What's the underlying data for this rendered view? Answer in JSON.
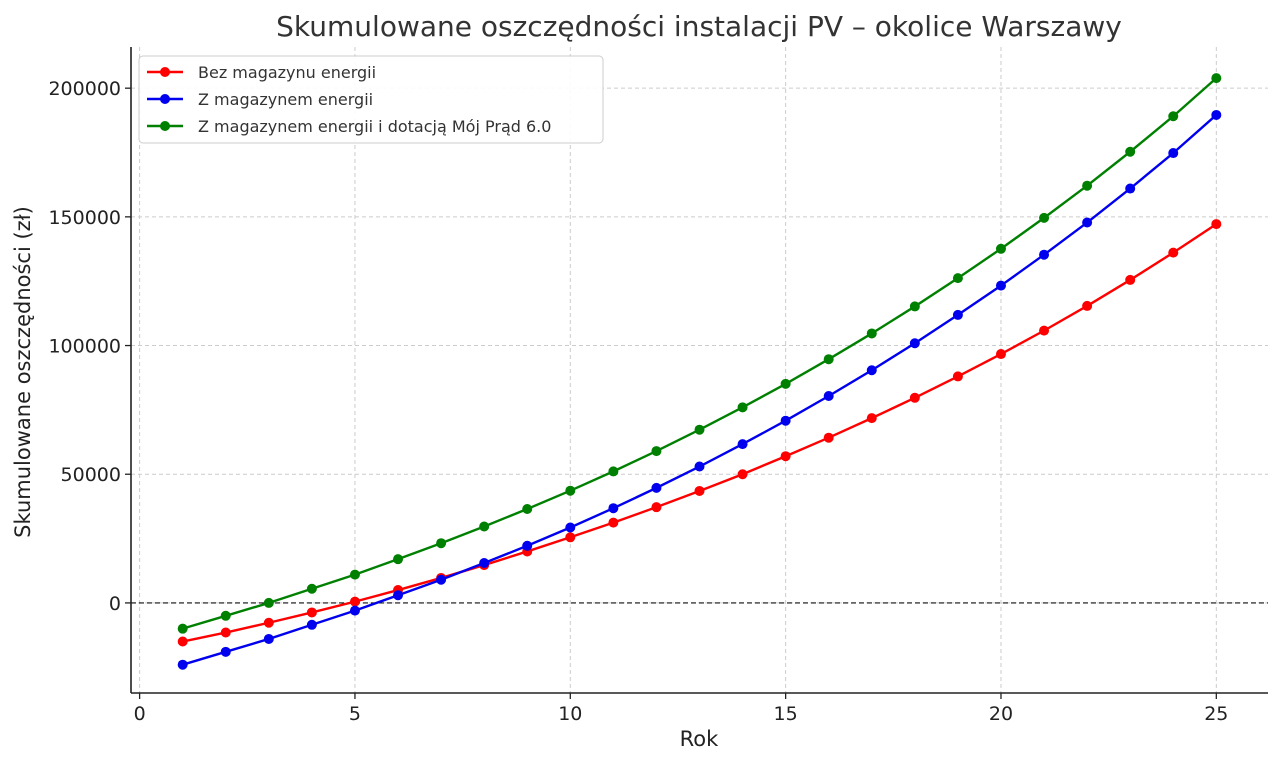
{
  "chart_data": {
    "type": "line",
    "title": "Skumulowane oszczędności instalacji PV – okolice Warszawy",
    "xlabel": "Rok",
    "ylabel": "Skumulowane oszczędności (zł)",
    "xlim": [
      -0.2,
      26.2
    ],
    "ylim": [
      -35000,
      216000
    ],
    "xticks": [
      0,
      5,
      10,
      15,
      20,
      25
    ],
    "yticks": [
      0,
      50000,
      100000,
      150000,
      200000
    ],
    "grid": true,
    "legend": "top-left",
    "reference_line": {
      "y": 0,
      "style": "dashed",
      "color": "#000000"
    },
    "x": [
      1,
      2,
      3,
      4,
      5,
      6,
      7,
      8,
      9,
      10,
      11,
      12,
      13,
      14,
      15,
      16,
      17,
      18,
      19,
      20,
      21,
      22,
      23,
      24,
      25
    ],
    "series": [
      {
        "name": "Bez magazynu energii",
        "color": "#ff0000",
        "values": [
          -15000,
          -11500,
          -7700,
          -3700,
          500,
          5000,
          9700,
          14700,
          20000,
          25500,
          31200,
          37200,
          43500,
          50000,
          57000,
          64200,
          71800,
          79700,
          88000,
          96700,
          105800,
          115400,
          125500,
          136100,
          147200
        ]
      },
      {
        "name": "Z magazynem energii",
        "color": "#0000ee",
        "values": [
          -24000,
          -19000,
          -14000,
          -8500,
          -3000,
          3000,
          9000,
          15500,
          22200,
          29300,
          36800,
          44700,
          53000,
          61700,
          70800,
          80400,
          90400,
          100900,
          111900,
          123300,
          135300,
          147800,
          161000,
          174800,
          189600
        ]
      },
      {
        "name": "Z magazynem energii i dotacją Mój Prąd 6.0",
        "color": "#008000",
        "values": [
          -10000,
          -5000,
          0,
          5500,
          11000,
          17000,
          23200,
          29700,
          36500,
          43600,
          51100,
          59000,
          67300,
          76000,
          85100,
          94700,
          104700,
          115200,
          126200,
          137600,
          149600,
          162100,
          175300,
          189100,
          203900
        ]
      }
    ]
  }
}
